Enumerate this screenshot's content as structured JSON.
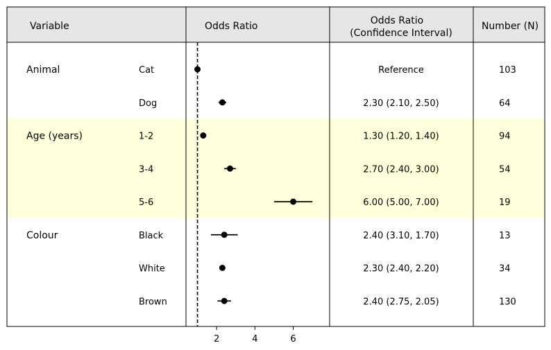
{
  "headers": {
    "variable": "Variable",
    "odds_ratio": "Odds Ratio",
    "ci_line1": "Odds Ratio",
    "ci_line2": "(Confidence Interval)",
    "number": "Number (N)"
  },
  "colors": {
    "header_bg": "#e6e6e6",
    "highlight_bg": "#ffffdc",
    "marker": "#000000"
  },
  "chart_data": {
    "type": "forest",
    "reference_line": 1,
    "reference_line_style": "dashed",
    "xlim": [
      0.4,
      7.9
    ],
    "xticks": [
      2,
      4,
      6
    ],
    "rows": [
      {
        "group": "Animal",
        "level": "Cat",
        "or": 1.0,
        "ci": null,
        "ci_text": "Reference",
        "n": "103",
        "highlight": false
      },
      {
        "group": "",
        "level": "Dog",
        "or": 2.3,
        "ci": [
          2.1,
          2.5
        ],
        "ci_text": "2.30 (2.10, 2.50)",
        "n": "64",
        "highlight": false
      },
      {
        "group": "Age (years)",
        "level": "1-2",
        "or": 1.3,
        "ci": [
          1.2,
          1.4
        ],
        "ci_text": "1.30 (1.20, 1.40)",
        "n": "94",
        "highlight": true
      },
      {
        "group": "",
        "level": "3-4",
        "or": 2.7,
        "ci": [
          2.4,
          3.0
        ],
        "ci_text": "2.70 (2.40, 3.00)",
        "n": "54",
        "highlight": true
      },
      {
        "group": "",
        "level": "5-6",
        "or": 6.0,
        "ci": [
          5.0,
          7.0
        ],
        "ci_text": "6.00 (5.00, 7.00)",
        "n": "19",
        "highlight": true
      },
      {
        "group": "Colour",
        "level": "Black",
        "or": 2.4,
        "ci": [
          3.1,
          1.7
        ],
        "ci_text": "2.40 (3.10, 1.70)",
        "n": "13",
        "highlight": false
      },
      {
        "group": "",
        "level": "White",
        "or": 2.3,
        "ci": [
          2.4,
          2.2
        ],
        "ci_text": "2.30 (2.40, 2.20)",
        "n": "34",
        "highlight": false
      },
      {
        "group": "",
        "level": "Brown",
        "or": 2.4,
        "ci": [
          2.75,
          2.05
        ],
        "ci_text": "2.40 (2.75, 2.05)",
        "n": "130",
        "highlight": false
      }
    ]
  }
}
